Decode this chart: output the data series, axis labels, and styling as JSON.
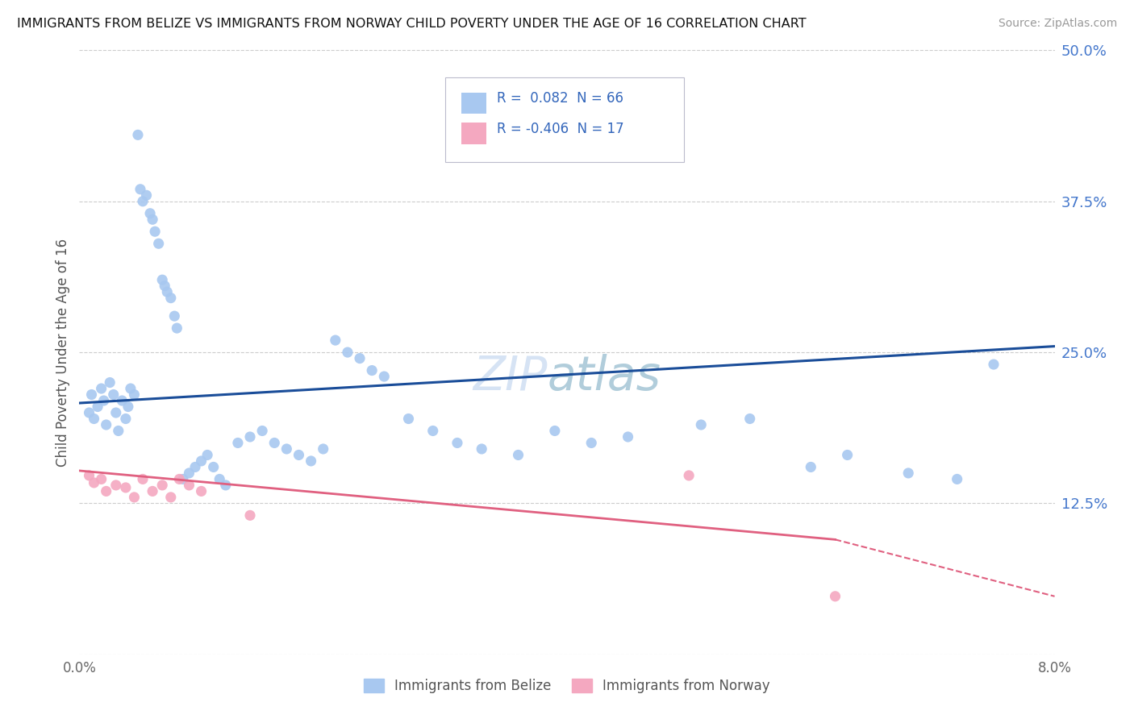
{
  "title": "IMMIGRANTS FROM BELIZE VS IMMIGRANTS FROM NORWAY CHILD POVERTY UNDER THE AGE OF 16 CORRELATION CHART",
  "source": "Source: ZipAtlas.com",
  "ylabel": "Child Poverty Under the Age of 16",
  "xlabel_belize": "Immigrants from Belize",
  "xlabel_norway": "Immigrants from Norway",
  "xlim": [
    0.0,
    0.08
  ],
  "ylim": [
    0.0,
    0.5
  ],
  "yticks": [
    0.0,
    0.125,
    0.25,
    0.375,
    0.5
  ],
  "ytick_labels": [
    "",
    "12.5%",
    "25.0%",
    "37.5%",
    "50.0%"
  ],
  "xticks": [
    0.0,
    0.02,
    0.04,
    0.06,
    0.08
  ],
  "xtick_labels": [
    "0.0%",
    "",
    "",
    "",
    "8.0%"
  ],
  "belize_color": "#a8c8f0",
  "norway_color": "#f4a8c0",
  "belize_line_color": "#1a4d99",
  "norway_line_color": "#e06080",
  "R_belize": 0.082,
  "N_belize": 66,
  "R_norway": -0.406,
  "N_norway": 17,
  "belize_x": [
    0.0008,
    0.001,
    0.0012,
    0.0015,
    0.0018,
    0.002,
    0.0022,
    0.0025,
    0.0028,
    0.003,
    0.0032,
    0.0035,
    0.0038,
    0.004,
    0.0042,
    0.0045,
    0.0048,
    0.005,
    0.0052,
    0.0055,
    0.0058,
    0.006,
    0.0062,
    0.0065,
    0.0068,
    0.007,
    0.0072,
    0.0075,
    0.0078,
    0.008,
    0.0085,
    0.009,
    0.0095,
    0.01,
    0.0105,
    0.011,
    0.0115,
    0.012,
    0.013,
    0.014,
    0.015,
    0.016,
    0.017,
    0.018,
    0.019,
    0.02,
    0.021,
    0.022,
    0.023,
    0.024,
    0.025,
    0.027,
    0.029,
    0.031,
    0.033,
    0.036,
    0.039,
    0.042,
    0.045,
    0.051,
    0.055,
    0.06,
    0.063,
    0.068,
    0.072,
    0.075
  ],
  "belize_y": [
    0.2,
    0.215,
    0.195,
    0.205,
    0.22,
    0.21,
    0.19,
    0.225,
    0.215,
    0.2,
    0.185,
    0.21,
    0.195,
    0.205,
    0.22,
    0.215,
    0.43,
    0.385,
    0.375,
    0.38,
    0.365,
    0.36,
    0.35,
    0.34,
    0.31,
    0.305,
    0.3,
    0.295,
    0.28,
    0.27,
    0.145,
    0.15,
    0.155,
    0.16,
    0.165,
    0.155,
    0.145,
    0.14,
    0.175,
    0.18,
    0.185,
    0.175,
    0.17,
    0.165,
    0.16,
    0.17,
    0.26,
    0.25,
    0.245,
    0.235,
    0.23,
    0.195,
    0.185,
    0.175,
    0.17,
    0.165,
    0.185,
    0.175,
    0.18,
    0.19,
    0.195,
    0.155,
    0.165,
    0.15,
    0.145,
    0.24
  ],
  "norway_x": [
    0.0008,
    0.0012,
    0.0018,
    0.0022,
    0.003,
    0.0038,
    0.0045,
    0.0052,
    0.006,
    0.0068,
    0.0075,
    0.0082,
    0.009,
    0.01,
    0.014,
    0.05,
    0.062
  ],
  "norway_y": [
    0.148,
    0.142,
    0.145,
    0.135,
    0.14,
    0.138,
    0.13,
    0.145,
    0.135,
    0.14,
    0.13,
    0.145,
    0.14,
    0.135,
    0.115,
    0.148,
    0.048
  ],
  "belize_trendline": [
    0.0,
    0.208,
    0.08,
    0.255
  ],
  "norway_trendline_solid": [
    0.0,
    0.152,
    0.062,
    0.095
  ],
  "norway_trendline_dash": [
    0.062,
    0.095,
    0.08,
    0.048
  ]
}
